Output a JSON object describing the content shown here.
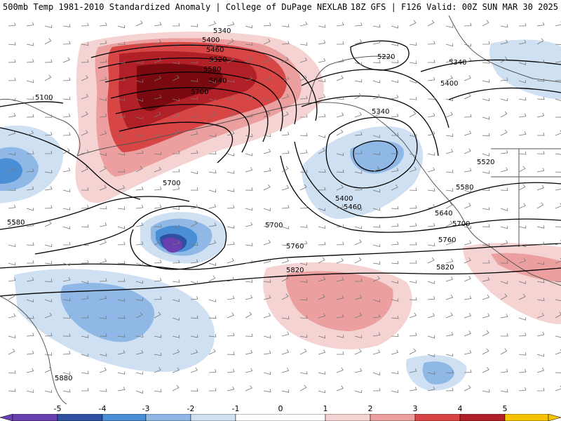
{
  "header": {
    "title_left": "500mb Temp 1981-2010 Standardized Anomaly | College of DuPage NEXLAB",
    "title_right": "18Z GFS | F126 Valid: 00Z SUN MAR 30 2025"
  },
  "map": {
    "contour_labels": [
      "5340",
      "5400",
      "5460",
      "5520",
      "5580",
      "5640",
      "5700",
      "5100",
      "5220",
      "5340",
      "5400",
      "5340",
      "5400",
      "5460",
      "5520",
      "5580",
      "5640",
      "5700",
      "5700",
      "5700",
      "5760",
      "5760",
      "5580",
      "5820",
      "5820",
      "5880"
    ],
    "anomaly_colors": {
      "neg5": "#6a3fb0",
      "neg4": "#2f4fa0",
      "neg3": "#4a8ed6",
      "neg2": "#8fb8e6",
      "neg1": "#cfe0f2",
      "pos1": "#f5d3d3",
      "pos2": "#ec9f9f",
      "pos3": "#d84545",
      "pos4": "#b11f27",
      "pos5": "#7a0a10",
      "max": "#f5c400"
    },
    "contour_color": "#000000",
    "coastline_color": "#555555"
  },
  "colorbar": {
    "labels": [
      "-5",
      "-4",
      "-3",
      "-2",
      "-1",
      "0",
      "1",
      "2",
      "3",
      "4",
      "5"
    ]
  }
}
